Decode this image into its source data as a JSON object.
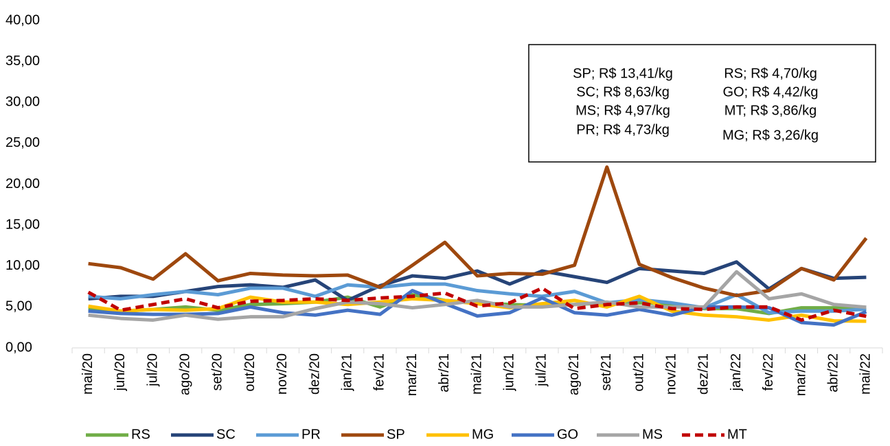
{
  "chart_data": {
    "type": "line",
    "categories": [
      "mai/20",
      "jun/20",
      "jul/20",
      "ago/20",
      "set/20",
      "out/20",
      "nov/20",
      "dez/20",
      "jan/21",
      "fev/21",
      "mar/21",
      "abr/21",
      "mai/21",
      "jun/21",
      "jul/21",
      "ago/21",
      "set/21",
      "out/21",
      "nov/21",
      "dez/21",
      "jan/22",
      "fev/22",
      "mar/22",
      "abr/22",
      "mai/22"
    ],
    "series": [
      {
        "name": "RS",
        "color": "#70ad47",
        "values": [
          4.7,
          4.5,
          4.7,
          5.0,
          4.6,
          5.3,
          5.4,
          5.6,
          6.2,
          5.0,
          6.5,
          5.8,
          5.5,
          5.3,
          5.2,
          5.3,
          5.5,
          5.5,
          5.4,
          4.8,
          4.8,
          4.2,
          4.9,
          4.9,
          4.7
        ]
      },
      {
        "name": "SC",
        "color": "#264478",
        "values": [
          6.0,
          6.3,
          6.3,
          6.9,
          7.5,
          7.7,
          7.4,
          8.3,
          5.8,
          7.6,
          8.8,
          8.5,
          9.4,
          7.8,
          9.4,
          8.7,
          8.0,
          9.7,
          9.4,
          9.1,
          10.5,
          7.2,
          9.7,
          8.5,
          8.63
        ]
      },
      {
        "name": "PR",
        "color": "#5b9bd5",
        "values": [
          6.3,
          6.0,
          6.5,
          6.9,
          6.5,
          7.3,
          7.3,
          6.3,
          7.7,
          7.4,
          7.8,
          7.8,
          7.0,
          6.6,
          6.3,
          6.9,
          5.5,
          5.9,
          5.5,
          4.9,
          6.5,
          4.3,
          4.5,
          4.5,
          4.73
        ]
      },
      {
        "name": "SP",
        "color": "#9e480e",
        "values": [
          10.3,
          9.8,
          8.4,
          11.5,
          8.2,
          9.1,
          8.9,
          8.8,
          8.9,
          7.4,
          10.1,
          12.9,
          8.8,
          9.1,
          9.0,
          10.1,
          22.1,
          10.2,
          8.6,
          7.3,
          6.4,
          7.0,
          9.7,
          8.3,
          13.41
        ]
      },
      {
        "name": "MG",
        "color": "#ffc000",
        "values": [
          5.1,
          4.5,
          4.7,
          4.6,
          4.8,
          6.2,
          5.6,
          5.6,
          5.3,
          5.6,
          6.0,
          5.8,
          5.4,
          4.9,
          5.4,
          5.8,
          5.0,
          6.3,
          4.5,
          4.0,
          3.8,
          3.4,
          4.0,
          3.3,
          3.26
        ]
      },
      {
        "name": "GO",
        "color": "#4472c4",
        "values": [
          4.5,
          4.2,
          4.1,
          4.1,
          4.2,
          5.0,
          4.3,
          4.0,
          4.6,
          4.1,
          7.0,
          5.4,
          3.9,
          4.3,
          6.1,
          4.3,
          4.0,
          4.7,
          4.0,
          5.0,
          5.0,
          4.9,
          3.1,
          2.8,
          4.42
        ]
      },
      {
        "name": "MS",
        "color": "#a5a5a5",
        "values": [
          4.0,
          3.6,
          3.4,
          4.0,
          3.5,
          3.8,
          3.8,
          4.8,
          5.6,
          5.4,
          4.9,
          5.3,
          5.8,
          5.0,
          5.0,
          5.3,
          5.6,
          5.0,
          5.0,
          5.0,
          9.3,
          6.0,
          6.6,
          5.3,
          4.97
        ]
      },
      {
        "name": "MT",
        "color": "#c00000",
        "dashed": true,
        "values": [
          6.8,
          4.6,
          5.3,
          6.0,
          4.9,
          5.7,
          5.8,
          6.0,
          5.8,
          6.1,
          6.3,
          6.7,
          5.1,
          5.5,
          7.3,
          4.8,
          5.3,
          5.5,
          4.8,
          4.7,
          5.0,
          5.0,
          3.4,
          4.6,
          3.86
        ]
      }
    ],
    "ylim": [
      0,
      40
    ],
    "yticks": [
      {
        "value": 0,
        "label": "0,00"
      },
      {
        "value": 5,
        "label": "5,00"
      },
      {
        "value": 10,
        "label": "10,00"
      },
      {
        "value": 15,
        "label": "15,00"
      },
      {
        "value": 20,
        "label": "20,00"
      },
      {
        "value": 25,
        "label": "25,00"
      },
      {
        "value": 30,
        "label": "30,00"
      },
      {
        "value": 35,
        "label": "35,00"
      },
      {
        "value": 40,
        "label": "40,00"
      }
    ],
    "annotations": [
      [
        "SP; R$ 13,41/kg",
        "SC; R$ 8,63/kg",
        "MS; R$ 4,97/kg",
        "PR; R$ 4,73/kg"
      ],
      [
        "RS; R$ 4,70/kg",
        "GO; R$ 4,42/kg",
        "MT; R$ 3,86/kg",
        "MG; R$ 3,26/kg"
      ]
    ],
    "legend": "bottom"
  }
}
